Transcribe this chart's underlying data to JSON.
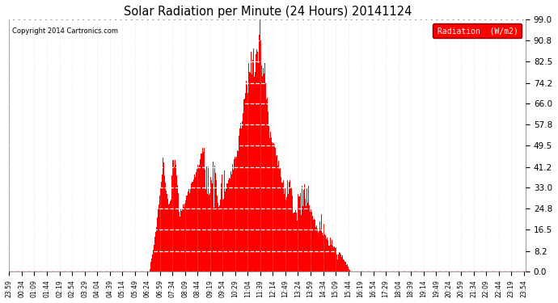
{
  "title": "Solar Radiation per Minute (24 Hours) 20141124",
  "copyright_text": "Copyright 2014 Cartronics.com",
  "legend_label": "Radiation  (W/m2)",
  "background_color": "#ffffff",
  "plot_bg_color": "#ffffff",
  "bar_color": "#ff0000",
  "grid_color": "#cccccc",
  "dashed_line_color": "#ff0000",
  "yticks": [
    0.0,
    8.2,
    16.5,
    24.8,
    33.0,
    41.2,
    49.5,
    57.8,
    66.0,
    74.2,
    82.5,
    90.8,
    99.0
  ],
  "ylim": [
    0.0,
    99.0
  ],
  "n_minutes": 1440,
  "figsize": [
    6.9,
    3.75
  ],
  "dpi": 100
}
